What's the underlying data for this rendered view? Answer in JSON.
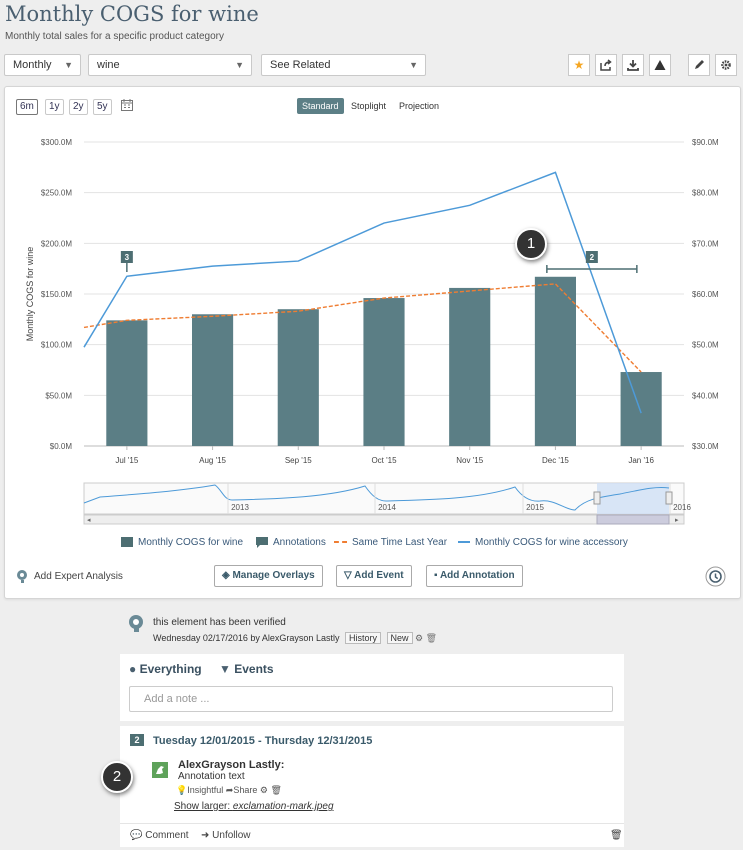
{
  "header": {
    "title": "Monthly COGS for wine",
    "subtitle": "Monthly total sales for a specific product category"
  },
  "toolbar": {
    "period_select": "Monthly",
    "category_select": "wine",
    "related_select": "See Related"
  },
  "chart_controls": {
    "ranges": [
      "6m",
      "1y",
      "2y",
      "5y"
    ],
    "active_range": "6m",
    "modes": [
      "Standard",
      "Stoplight",
      "Projection"
    ],
    "active_mode": "Standard"
  },
  "chart_data": {
    "type": "bar",
    "categories": [
      "Jul '15",
      "Aug '15",
      "Sep '15",
      "Oct '15",
      "Nov '15",
      "Dec '15",
      "Jan '16"
    ],
    "ylabel": "Monthly COGS for wine",
    "ylim": [
      0,
      300
    ],
    "y_ticks": [
      "$0.0M",
      "$50.0M",
      "$100.0M",
      "$150.0M",
      "$200.0M",
      "$250.0M",
      "$300.0M"
    ],
    "y2lim": [
      30,
      90
    ],
    "y2_ticks": [
      "$30.0M",
      "$40.0M",
      "$50.0M",
      "$60.0M",
      "$70.0M",
      "$80.0M",
      "$90.0M"
    ],
    "bars": {
      "name": "Monthly COGS for wine",
      "values": [
        124,
        130,
        135,
        146,
        156,
        167,
        73
      ],
      "color": "#5b7e85"
    },
    "same_time_last_year": {
      "name": "Same Time Last Year",
      "color": "#ef7d32",
      "points": [
        [
          -0.5,
          117
        ],
        [
          0,
          124
        ],
        [
          1,
          128
        ],
        [
          2,
          133
        ],
        [
          3,
          146
        ],
        [
          4,
          153
        ],
        [
          5,
          160
        ],
        [
          6,
          73
        ]
      ]
    },
    "accessory": {
      "name": "Monthly COGS for wine accessory",
      "color": "#4d9ad8",
      "points": [
        [
          -0.5,
          49.5
        ],
        [
          0,
          63.5
        ],
        [
          1,
          65.5
        ],
        [
          2,
          66.5
        ],
        [
          3,
          74
        ],
        [
          4,
          77.5
        ],
        [
          5,
          84
        ],
        [
          6,
          36.5
        ]
      ]
    },
    "annotations": [
      {
        "label": "3",
        "x": 0
      },
      {
        "label": "2",
        "x_from": 4.9,
        "x_to": 5.95
      }
    ],
    "navigator_years": [
      "2013",
      "2014",
      "2015",
      "2016"
    ],
    "legend": [
      "Monthly COGS for wine",
      "Annotations",
      "Same Time Last Year",
      "Monthly COGS for wine accessory"
    ]
  },
  "actions": {
    "expert": "Add Expert Analysis",
    "overlays": "Manage Overlays",
    "event": "Add Event",
    "annotation": "Add Annotation"
  },
  "verification": {
    "text": "this element has been verified",
    "meta": "Wednesday 02/17/2016 by AlexGrayson Lastly",
    "history_tag": "History",
    "new_tag": "New"
  },
  "feed": {
    "tabs": [
      "Everything",
      "Events"
    ],
    "note_placeholder": "Add a note ..."
  },
  "annotation_item": {
    "badge": "2",
    "date_range": "Tuesday 12/01/2015 - Thursday 12/31/2015",
    "user": "AlexGrayson Lastly:",
    "text": "Annotation text",
    "insightful": "Insightful",
    "share": "Share",
    "link_prefix": "Show larger: ",
    "link_file": "exclamation-mark.jpeg",
    "comment": "Comment",
    "unfollow": "Unfollow"
  },
  "callouts": [
    "1",
    "2"
  ]
}
